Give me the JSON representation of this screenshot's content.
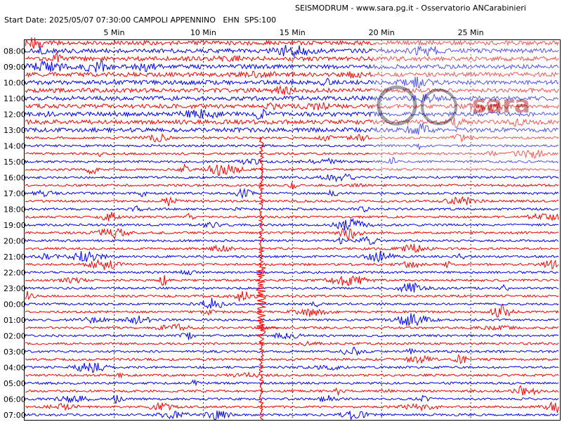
{
  "header": "SEISMODRUM - www.sara.pg.it - Osservatorio ANCarabinieri",
  "info": "Start Date: 2025/05/07 07:30:00 CAMPOLI APPENNINO   EHN  SPS:100",
  "minute_labels": [
    "5 Min",
    "10 Min",
    "15 Min",
    "20 Min",
    "25 Min"
  ],
  "hour_labels": [
    "08:00",
    "09:00",
    "10:00",
    "11:00",
    "12:00",
    "13:00",
    "14:00",
    "15:00",
    "16:00",
    "17:00",
    "18:00",
    "19:00",
    "20:00",
    "21:00",
    "22:00",
    "23:00",
    "00:00",
    "01:00",
    "02:00",
    "03:00",
    "04:00",
    "05:00",
    "06:00",
    "07:00"
  ],
  "logo": "sara"
}
